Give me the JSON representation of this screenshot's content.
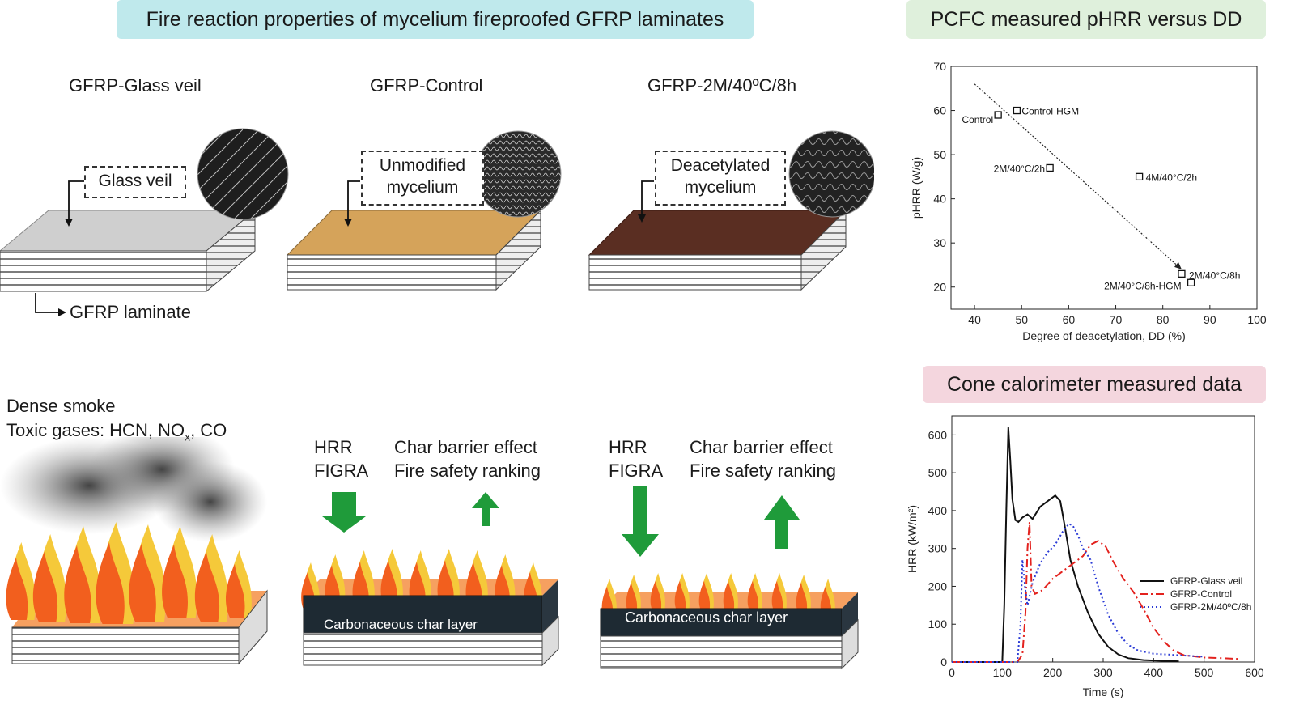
{
  "banners": {
    "main": "Fire reaction properties of mycelium fireproofed GFRP laminates",
    "pcfc": "PCFC measured pHRR versus DD",
    "cone": "Cone calorimeter measured data"
  },
  "samples": [
    {
      "title": "GFRP-Glass veil",
      "callout": [
        "Glass veil"
      ],
      "surface_color": "#cfcfcf"
    },
    {
      "title": "GFRP-Control",
      "callout": [
        "Unmodified",
        "mycelium"
      ],
      "surface_color": "#d5a35a"
    },
    {
      "title": "GFRP-2M/40ºC/8h",
      "callout": [
        "Deacetylated",
        "mycelium"
      ],
      "surface_color": "#5a2e22"
    }
  ],
  "laminate_label": "GFRP laminate",
  "fire_panels": {
    "smoke_lines": [
      "Dense smoke",
      "Toxic gases: HCN, NO",
      "x",
      ", CO"
    ],
    "panel2": {
      "left": [
        "HRR",
        "FIGRA"
      ],
      "right": [
        "Char barrier effect",
        "Fire safety ranking"
      ],
      "char": "Carbonaceous char layer"
    },
    "panel3": {
      "left": [
        "HRR",
        "FIGRA"
      ],
      "right": [
        "Char barrier effect",
        "Fire safety ranking"
      ],
      "char": "Carbonaceous char layer"
    }
  },
  "chart_data": [
    {
      "type": "scatter",
      "xlabel": "Degree of deacetylation, DD (%)",
      "ylabel": "pHRR (W/g)",
      "xlim": [
        35,
        100
      ],
      "ylim": [
        15,
        70
      ],
      "xticks": [
        40,
        50,
        60,
        70,
        80,
        90,
        100
      ],
      "yticks": [
        20,
        30,
        40,
        50,
        60,
        70
      ],
      "points": [
        {
          "label": "Control",
          "x": 45,
          "y": 59
        },
        {
          "label": "Control-HGM",
          "x": 49,
          "y": 60
        },
        {
          "label": "2M/40°C/2h",
          "x": 56,
          "y": 47
        },
        {
          "label": "4M/40°C/2h",
          "x": 75,
          "y": 45
        },
        {
          "label": "2M/40°C/8h",
          "x": 84,
          "y": 23
        },
        {
          "label": "2M/40°C/8h-HGM",
          "x": 86,
          "y": 21
        }
      ],
      "trend": {
        "x": [
          40,
          84
        ],
        "y": [
          66,
          24
        ]
      }
    },
    {
      "type": "line",
      "xlabel": "Time (s)",
      "ylabel": "HRR (kW/m²)",
      "xlim": [
        0,
        600
      ],
      "ylim": [
        0,
        650
      ],
      "xticks": [
        0,
        100,
        200,
        300,
        400,
        500,
        600
      ],
      "yticks": [
        0,
        100,
        200,
        300,
        400,
        500,
        600
      ],
      "legend": "bottom-right",
      "series": [
        {
          "name": "GFRP-Glass veil",
          "color": "#111111",
          "dash": "solid",
          "x": [
            0,
            100,
            104,
            108,
            112,
            116,
            120,
            126,
            132,
            140,
            150,
            160,
            175,
            190,
            205,
            215,
            225,
            235,
            250,
            270,
            290,
            310,
            330,
            350,
            380,
            420,
            450
          ],
          "y": [
            0,
            0,
            150,
            400,
            620,
            530,
            430,
            375,
            370,
            382,
            390,
            378,
            410,
            425,
            440,
            425,
            350,
            270,
            200,
            130,
            75,
            40,
            20,
            10,
            5,
            3,
            2
          ]
        },
        {
          "name": "GFRP-Control",
          "color": "#e3221e",
          "dash": "dashdot",
          "x": [
            0,
            130,
            140,
            146,
            150,
            154,
            158,
            165,
            180,
            200,
            220,
            240,
            260,
            275,
            290,
            305,
            320,
            340,
            360,
            380,
            400,
            420,
            440,
            460,
            500,
            540,
            570
          ],
          "y": [
            0,
            0,
            20,
            130,
            300,
            370,
            200,
            180,
            190,
            220,
            240,
            260,
            280,
            310,
            320,
            305,
            265,
            220,
            185,
            140,
            90,
            55,
            30,
            18,
            12,
            10,
            8
          ]
        },
        {
          "name": "GFRP-2M/40ºC/8h",
          "color": "#2b3bd6",
          "dash": "dotted",
          "x": [
            0,
            130,
            136,
            140,
            145,
            150,
            160,
            175,
            190,
            205,
            220,
            232,
            240,
            250,
            260,
            275,
            290,
            310,
            330,
            350,
            370,
            400,
            450,
            500
          ],
          "y": [
            0,
            0,
            100,
            270,
            200,
            150,
            210,
            260,
            290,
            310,
            345,
            365,
            360,
            335,
            300,
            270,
            200,
            125,
            75,
            45,
            30,
            22,
            18,
            14
          ]
        }
      ]
    }
  ]
}
